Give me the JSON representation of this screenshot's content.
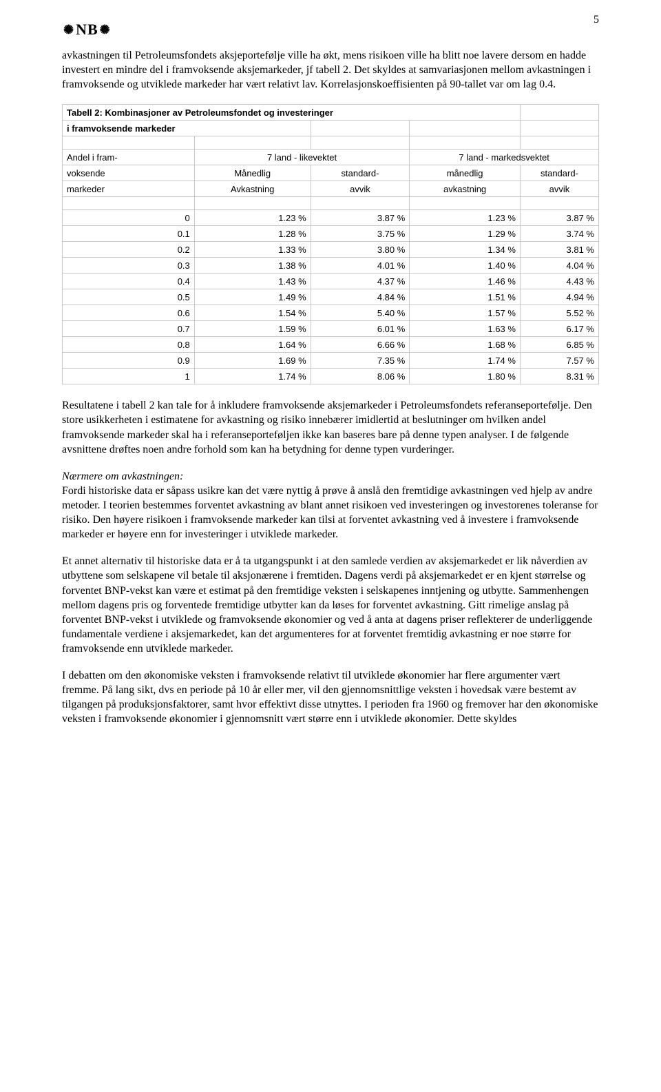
{
  "page_number": "5",
  "logo_text": "NB",
  "paragraphs": {
    "p1": "avkastningen til Petroleumsfondets aksjeportefølje ville ha økt, mens risikoen ville ha blitt noe lavere dersom en hadde investert en mindre del i framvoksende aksjemarkeder, jf tabell 2. Det skyldes at samvariasjonen mellom avkastningen i framvoksende og utviklede markeder har vært relativt lav. Korrelasjonskoeffisienten på 90-tallet var om lag 0.4.",
    "p2": "Resultatene i tabell 2 kan tale for å inkludere framvoksende aksjemarkeder i Petroleumsfondets referanseportefølje. Den store usikkerheten i estimatene for avkastning og risiko innebærer imidlertid at beslutninger om hvilken andel framvoksende markeder skal ha i referanseporteføljen ikke kan baseres bare på denne typen analyser. I de følgende avsnittene drøftes noen andre forhold som kan ha betydning for denne typen vurderinger.",
    "p3_heading": "Nærmere om avkastningen:",
    "p3": "Fordi historiske data er såpass usikre kan det være nyttig å prøve å anslå den fremtidige avkastningen ved hjelp av andre metoder. I teorien bestemmes forventet avkastning av blant annet risikoen ved investeringen og investorenes toleranse for risiko. Den høyere risikoen i framvoksende markeder kan tilsi at forventet avkastning ved å investere i framvoksende markeder er høyere enn for investeringer i utviklede markeder.",
    "p4": "Et annet alternativ til historiske data er å ta utgangspunkt i at den samlede verdien av aksjemarkedet er lik nåverdien av utbyttene som selskapene vil betale til aksjonærene i fremtiden. Dagens verdi på aksjemarkedet er en kjent størrelse og forventet BNP-vekst kan være et estimat på den fremtidige veksten i selskapenes inntjening og utbytte. Sammenhengen mellom dagens pris og forventede fremtidige utbytter kan da løses for forventet avkastning. Gitt rimelige anslag på forventet BNP-vekst i utviklede og framvoksende økonomier og ved å anta at dagens priser reflekterer de underliggende fundamentale verdiene i aksjemarkedet, kan det argumenteres for at forventet fremtidig avkastning er noe større for framvoksende enn utviklede markeder.",
    "p5": "I debatten om den økonomiske veksten i framvoksende relativt til utviklede økonomier har flere argumenter vært fremme. På lang sikt, dvs en periode på 10 år eller mer, vil den gjennomsnittlige veksten i hovedsak være bestemt av tilgangen på produksjonsfaktorer, samt hvor effektivt disse utnyttes. I perioden fra 1960 og fremover har den økonomiske veksten i framvoksende økonomier i gjennomsnitt vært større enn i utviklede økonomier. Dette skyldes"
  },
  "table": {
    "title_line1": "Tabell 2: Kombinasjoner av Petroleumsfondet og investeringer",
    "title_line2": "i framvoksende markeder",
    "header": {
      "col1_l1": "Andel i fram-",
      "col1_l2": "voksende",
      "col1_l3": "markeder",
      "group1": "7 land - likevektet",
      "group2": "7 land - markedsvektet",
      "g1_c1_l2": "Månedlig",
      "g1_c1_l3": "Avkastning",
      "g1_c2_l2": "standard-",
      "g1_c2_l3": "avvik",
      "g2_c1_l2": "månedlig",
      "g2_c1_l3": "avkastning",
      "g2_c2_l2": "standard-",
      "g2_c2_l3": "avvik"
    },
    "rows": [
      {
        "a": "0",
        "b": "1.23 %",
        "c": "3.87 %",
        "d": "1.23 %",
        "e": "3.87 %"
      },
      {
        "a": "0.1",
        "b": "1.28 %",
        "c": "3.75 %",
        "d": "1.29 %",
        "e": "3.74 %"
      },
      {
        "a": "0.2",
        "b": "1.33 %",
        "c": "3.80 %",
        "d": "1.34 %",
        "e": "3.81 %"
      },
      {
        "a": "0.3",
        "b": "1.38 %",
        "c": "4.01 %",
        "d": "1.40 %",
        "e": "4.04 %"
      },
      {
        "a": "0.4",
        "b": "1.43 %",
        "c": "4.37 %",
        "d": "1.46 %",
        "e": "4.43 %"
      },
      {
        "a": "0.5",
        "b": "1.49 %",
        "c": "4.84 %",
        "d": "1.51 %",
        "e": "4.94 %"
      },
      {
        "a": "0.6",
        "b": "1.54 %",
        "c": "5.40 %",
        "d": "1.57 %",
        "e": "5.52 %"
      },
      {
        "a": "0.7",
        "b": "1.59 %",
        "c": "6.01 %",
        "d": "1.63 %",
        "e": "6.17 %"
      },
      {
        "a": "0.8",
        "b": "1.64 %",
        "c": "6.66 %",
        "d": "1.68 %",
        "e": "6.85 %"
      },
      {
        "a": "0.9",
        "b": "1.69 %",
        "c": "7.35 %",
        "d": "1.74 %",
        "e": "7.57 %"
      },
      {
        "a": "1",
        "b": "1.74 %",
        "c": "8.06 %",
        "d": "1.80 %",
        "e": "8.31 %"
      }
    ],
    "border_color": "#c8c8c8",
    "font_size": 13
  }
}
